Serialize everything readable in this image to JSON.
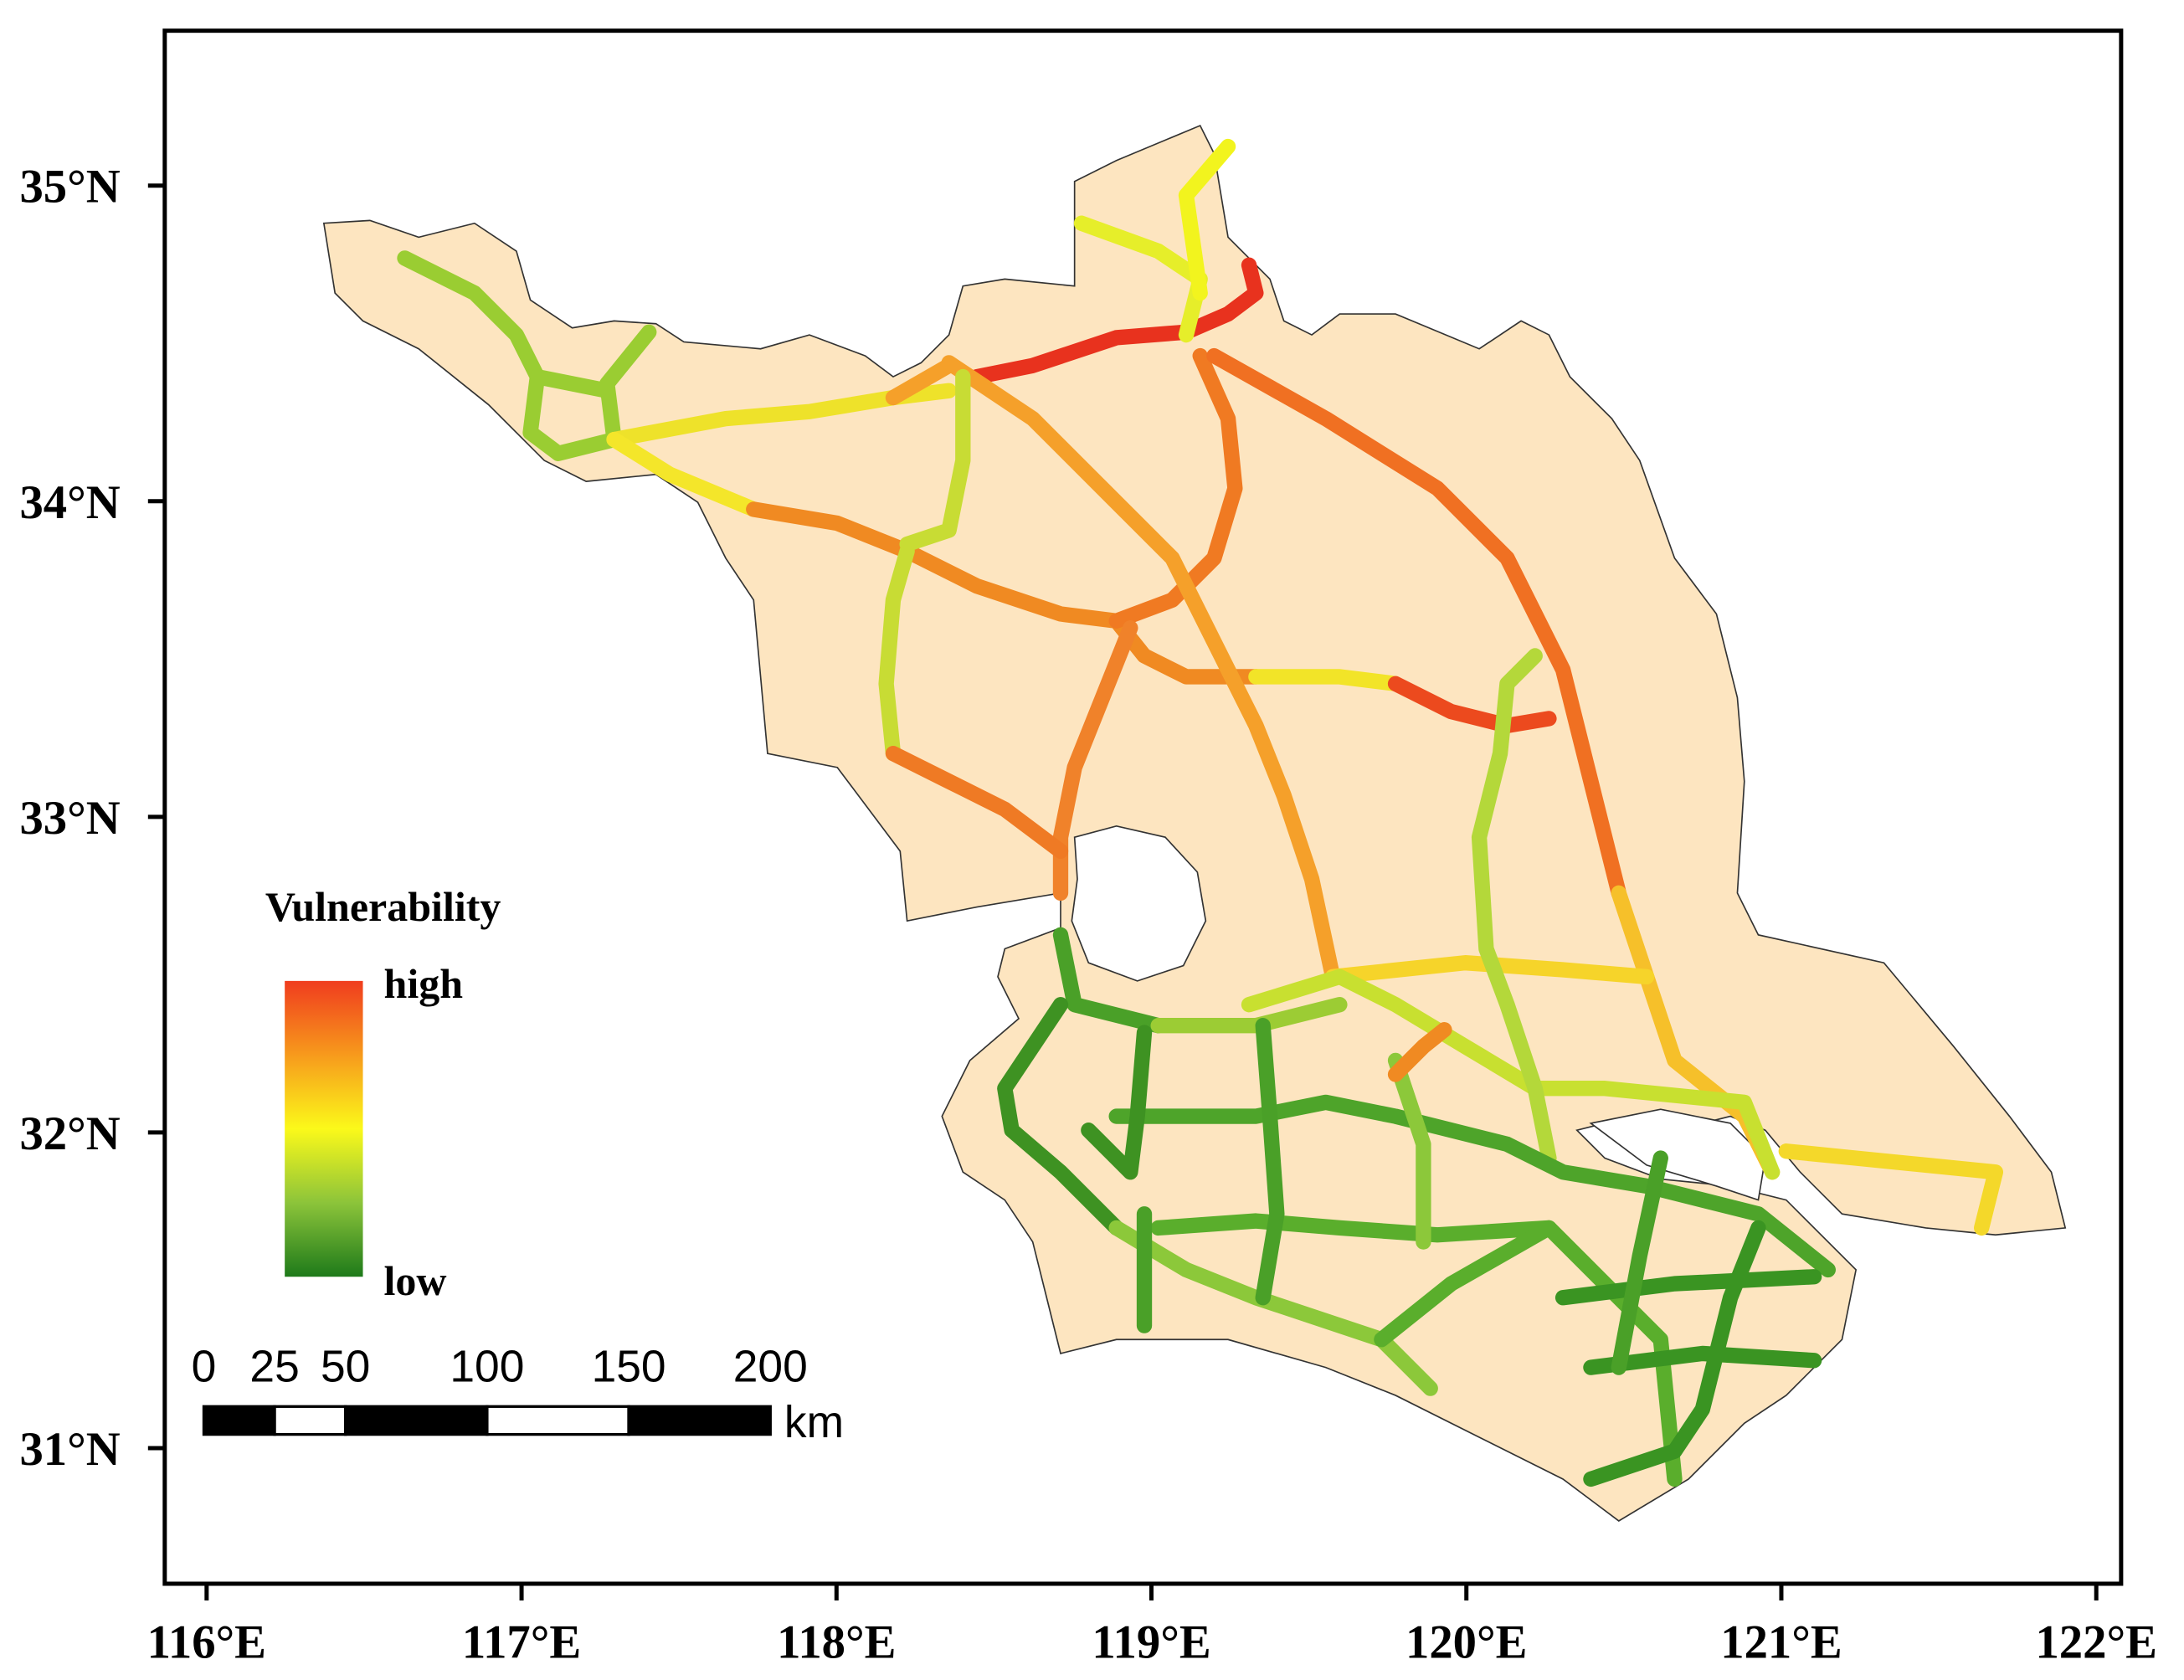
{
  "map": {
    "legend": {
      "title": "Vulnerability",
      "high": "high",
      "low": "low"
    },
    "x_ticks": [
      {
        "value": 116,
        "label": "116°E"
      },
      {
        "value": 117,
        "label": "117°E"
      },
      {
        "value": 118,
        "label": "118°E"
      },
      {
        "value": 119,
        "label": "119°E"
      },
      {
        "value": 120,
        "label": "120°E"
      },
      {
        "value": 121,
        "label": "121°E"
      },
      {
        "value": 122,
        "label": "122°E"
      }
    ],
    "y_ticks": [
      {
        "value": 31,
        "label": "31°N"
      },
      {
        "value": 32,
        "label": "32°N"
      },
      {
        "value": 33,
        "label": "33°N"
      },
      {
        "value": 34,
        "label": "34°N"
      },
      {
        "value": 35,
        "label": "35°N"
      }
    ],
    "scale_bar": {
      "ticks": [
        0,
        25,
        50,
        100,
        150,
        200
      ],
      "unit": "km"
    }
  }
}
